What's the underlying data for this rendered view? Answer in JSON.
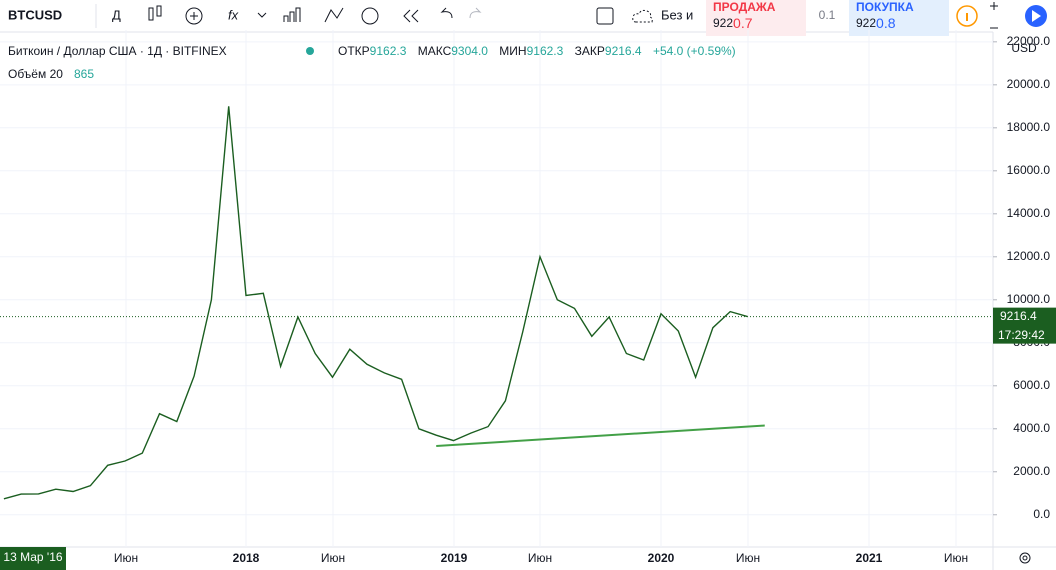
{
  "toolbar": {
    "symbol": "BTCUSD",
    "interval": "Д",
    "style_label": "Без и"
  },
  "trade": {
    "sell_label": "ПРОДАЖА",
    "sell_price": {
      "main": "922",
      "accent": "0.7"
    },
    "spread": "0.1",
    "buy_label": "ПОКУПКА",
    "buy_price": {
      "main": "922",
      "accent": "0.8"
    }
  },
  "legend": {
    "title": "Биткоин / Доллар США · 1Д · BITFINEX",
    "open_label": "ОТКР",
    "open": "9162.3",
    "high_label": "МАКС",
    "high": "9304.0",
    "low_label": "МИН",
    "low": "9162.3",
    "close_label": "ЗАКР",
    "close": "9216.4",
    "change": "+54.0 (+0.59%)",
    "volume_label": "Объём 20",
    "volume": "865"
  },
  "chart_data": {
    "type": "line",
    "x": [
      "2016-11",
      "2016-12",
      "2017-01",
      "2017-02",
      "2017-03",
      "2017-04",
      "2017-05",
      "2017-06",
      "2017-07",
      "2017-08",
      "2017-09",
      "2017-10",
      "2017-11",
      "2017-12",
      "2018-01",
      "2018-02",
      "2018-03",
      "2018-04",
      "2018-05",
      "2018-06",
      "2018-07",
      "2018-08",
      "2018-09",
      "2018-10",
      "2018-11",
      "2018-12",
      "2019-01",
      "2019-02",
      "2019-03",
      "2019-04",
      "2019-05",
      "2019-06",
      "2019-07",
      "2019-08",
      "2019-09",
      "2019-10",
      "2019-11",
      "2019-12",
      "2020-01",
      "2020-02",
      "2020-03",
      "2020-04",
      "2020-05",
      "2020-06"
    ],
    "values": [
      740,
      960,
      970,
      1190,
      1080,
      1350,
      2300,
      2500,
      2870,
      4700,
      4340,
      6450,
      10000,
      19000,
      10200,
      10300,
      6900,
      9200,
      7500,
      6400,
      7700,
      7000,
      6600,
      6300,
      4000,
      3700,
      3450,
      3800,
      4100,
      5300,
      8500,
      12000,
      10000,
      9600,
      8300,
      9200,
      7500,
      7200,
      9350,
      8550,
      6400,
      8700,
      9450,
      9216.4
    ],
    "color": "#1b5e20",
    "ylim": [
      -1500,
      22550
    ],
    "yticks": [
      {
        "value": 0,
        "label": "0.0"
      },
      {
        "value": 2000,
        "label": "2000.0"
      },
      {
        "value": 4000,
        "label": "4000.0"
      },
      {
        "value": 6000,
        "label": "6000.0"
      },
      {
        "value": 8000,
        "label": "8000.0"
      },
      {
        "value": 10000,
        "label": "10000.0"
      },
      {
        "value": 12000,
        "label": "12000.0"
      },
      {
        "value": 14000,
        "label": "14000.0"
      },
      {
        "value": 16000,
        "label": "16000.0"
      },
      {
        "value": 18000,
        "label": "18000.0"
      },
      {
        "value": 20000,
        "label": "20000.0"
      },
      {
        "value": 22000,
        "label": "22000.0"
      }
    ],
    "grid": true,
    "trend_line": {
      "x": [
        "2018-12",
        "2020-07"
      ],
      "values": [
        3200,
        4150
      ],
      "color": "#43a047"
    },
    "last_value": 9216.4,
    "countdown": "17:29:42",
    "currency": "USD",
    "cursor_date": "13 Мар '16",
    "time_labels": [
      "Июн",
      "2018",
      "Июн",
      "2019",
      "Июн",
      "2020",
      "Июн",
      "2021",
      "Июн"
    ]
  }
}
